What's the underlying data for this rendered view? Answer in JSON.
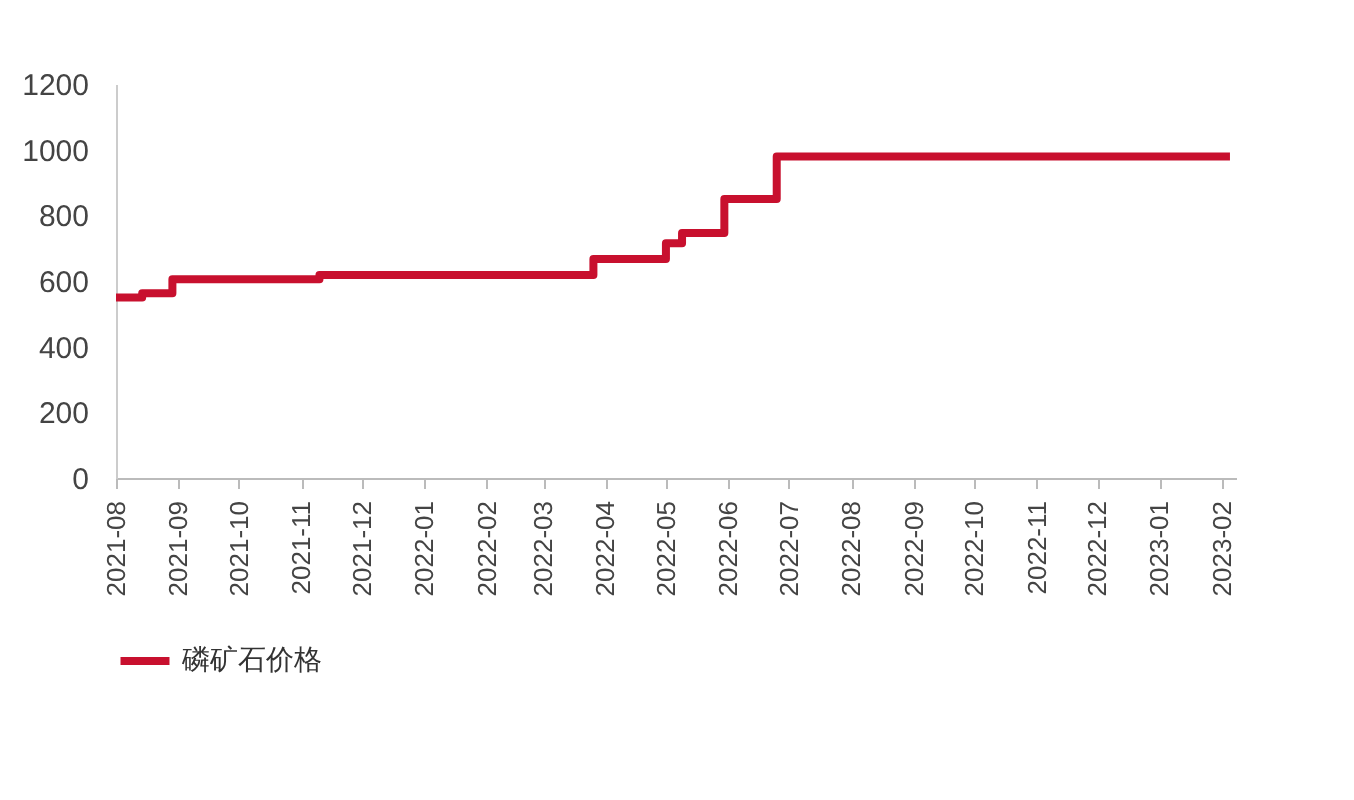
{
  "chart_data": {
    "type": "step",
    "x": [
      "2021-08-01",
      "2021-08-14",
      "2021-08-29",
      "2021-11-10",
      "2022-03-26",
      "2022-05-01",
      "2022-05-09",
      "2022-05-30",
      "2022-06-25",
      "2023-02-05"
    ],
    "series": [
      {
        "name": "磷矿石价格",
        "color": "#c8102e",
        "values": [
          550,
          563,
          605,
          618,
          667,
          715,
          746,
          850,
          979,
          979
        ]
      }
    ],
    "xlim": [
      "2021-08-01",
      "2023-02-08"
    ],
    "xticks": [
      "2021-08",
      "2021-09",
      "2021-10",
      "2021-11",
      "2021-12",
      "2022-01",
      "2022-02",
      "2022-03",
      "2022-04",
      "2022-05",
      "2022-06",
      "2022-07",
      "2022-08",
      "2022-09",
      "2022-10",
      "2022-11",
      "2022-12",
      "2023-01",
      "2023-02"
    ],
    "ylim": [
      0,
      1200
    ],
    "yticks": [
      0,
      200,
      400,
      600,
      800,
      1000,
      1200
    ],
    "grid": false,
    "legend": "bottom",
    "line_style": "solid",
    "marker": "none"
  }
}
